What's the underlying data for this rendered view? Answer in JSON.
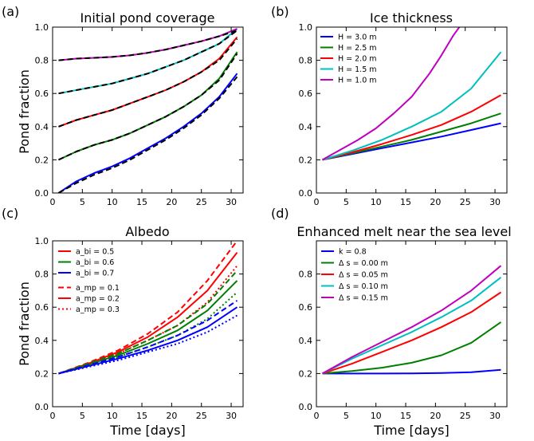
{
  "chart_data": [
    {
      "panel": "(a)",
      "type": "line",
      "title": "Initial pond coverage",
      "xlabel": "",
      "ylabel": "Pond fraction",
      "xlim": [
        0,
        32
      ],
      "ylim": [
        0,
        1.0
      ],
      "xticks": [
        0,
        5,
        10,
        15,
        20,
        25,
        30
      ],
      "yticks": [
        0.0,
        0.2,
        0.4,
        0.6,
        0.8,
        1.0
      ],
      "legend": null,
      "series": [
        {
          "color": "#0000ff",
          "style": "solid",
          "x": [
            1,
            4,
            7,
            10,
            13,
            16,
            19,
            22,
            25,
            28,
            31
          ],
          "y": [
            0.0,
            0.07,
            0.12,
            0.16,
            0.21,
            0.27,
            0.33,
            0.4,
            0.48,
            0.58,
            0.72
          ]
        },
        {
          "color": "#000000",
          "style": "dashed",
          "x": [
            1,
            4,
            7,
            10,
            13,
            16,
            19,
            22,
            25,
            28,
            31
          ],
          "y": [
            0.0,
            0.06,
            0.11,
            0.15,
            0.2,
            0.26,
            0.32,
            0.39,
            0.47,
            0.57,
            0.7
          ]
        },
        {
          "color": "#007f00",
          "style": "solid",
          "x": [
            1,
            4,
            7,
            10,
            13,
            16,
            19,
            22,
            25,
            28,
            31
          ],
          "y": [
            0.2,
            0.25,
            0.29,
            0.32,
            0.36,
            0.41,
            0.46,
            0.52,
            0.59,
            0.69,
            0.85
          ]
        },
        {
          "color": "#000000",
          "style": "dashed",
          "x": [
            1,
            4,
            7,
            10,
            13,
            16,
            19,
            22,
            25,
            28,
            31
          ],
          "y": [
            0.2,
            0.25,
            0.29,
            0.32,
            0.36,
            0.41,
            0.46,
            0.52,
            0.59,
            0.68,
            0.84
          ]
        },
        {
          "color": "#ff0000",
          "style": "solid",
          "x": [
            1,
            4,
            7,
            10,
            13,
            16,
            19,
            22,
            25,
            28,
            31
          ],
          "y": [
            0.4,
            0.44,
            0.47,
            0.5,
            0.54,
            0.58,
            0.62,
            0.67,
            0.73,
            0.81,
            0.94
          ]
        },
        {
          "color": "#000000",
          "style": "dashed",
          "x": [
            1,
            4,
            7,
            10,
            13,
            16,
            19,
            22,
            25,
            28,
            31
          ],
          "y": [
            0.4,
            0.44,
            0.47,
            0.5,
            0.54,
            0.58,
            0.62,
            0.67,
            0.73,
            0.8,
            0.93
          ]
        },
        {
          "color": "#00bfbf",
          "style": "solid",
          "x": [
            1,
            4,
            7,
            10,
            13,
            16,
            19,
            22,
            25,
            28,
            31
          ],
          "y": [
            0.6,
            0.62,
            0.64,
            0.66,
            0.69,
            0.72,
            0.76,
            0.8,
            0.85,
            0.9,
            0.99
          ]
        },
        {
          "color": "#000000",
          "style": "dashed",
          "x": [
            1,
            4,
            7,
            10,
            13,
            16,
            19,
            22,
            25,
            28,
            31
          ],
          "y": [
            0.6,
            0.62,
            0.64,
            0.66,
            0.69,
            0.72,
            0.76,
            0.8,
            0.85,
            0.9,
            0.98
          ]
        },
        {
          "color": "#bf00bf",
          "style": "solid",
          "x": [
            1,
            4,
            7,
            10,
            13,
            16,
            19,
            22,
            25,
            28,
            31
          ],
          "y": [
            0.8,
            0.81,
            0.815,
            0.82,
            0.83,
            0.845,
            0.865,
            0.89,
            0.915,
            0.945,
            0.99
          ]
        },
        {
          "color": "#000000",
          "style": "dashed",
          "x": [
            1,
            4,
            7,
            10,
            13,
            16,
            19,
            22,
            25,
            28,
            31
          ],
          "y": [
            0.8,
            0.81,
            0.815,
            0.82,
            0.83,
            0.845,
            0.865,
            0.89,
            0.915,
            0.945,
            0.98
          ]
        }
      ]
    },
    {
      "panel": "(b)",
      "type": "line",
      "title": "Ice thickness",
      "xlabel": "",
      "ylabel": "",
      "xlim": [
        0,
        32
      ],
      "ylim": [
        0,
        1.0
      ],
      "xticks": [
        0,
        5,
        10,
        15,
        20,
        25,
        30
      ],
      "yticks": [
        0.0,
        0.2,
        0.4,
        0.6,
        0.8,
        1.0
      ],
      "legend": "top-left",
      "series": [
        {
          "name": "H =  3.0 m",
          "color": "#0000ff",
          "style": "solid",
          "x": [
            1,
            6,
            11,
            16,
            21,
            26,
            31
          ],
          "y": [
            0.2,
            0.235,
            0.27,
            0.305,
            0.34,
            0.38,
            0.42
          ]
        },
        {
          "name": "H =  2.5 m",
          "color": "#007f00",
          "style": "solid",
          "x": [
            1,
            6,
            11,
            16,
            21,
            26,
            31
          ],
          "y": [
            0.2,
            0.24,
            0.28,
            0.32,
            0.37,
            0.42,
            0.48
          ]
        },
        {
          "name": "H =  2.0 m",
          "color": "#ff0000",
          "style": "solid",
          "x": [
            1,
            6,
            11,
            16,
            21,
            26,
            31
          ],
          "y": [
            0.2,
            0.245,
            0.295,
            0.35,
            0.41,
            0.49,
            0.59
          ]
        },
        {
          "name": "H =  1.5 m",
          "color": "#00bfbf",
          "style": "solid",
          "x": [
            1,
            6,
            11,
            16,
            21,
            26,
            31
          ],
          "y": [
            0.2,
            0.255,
            0.32,
            0.4,
            0.49,
            0.63,
            0.85
          ]
        },
        {
          "name": "H =  1.0 m",
          "color": "#bf00bf",
          "style": "solid",
          "x": [
            1,
            4,
            7,
            10,
            13,
            16,
            19,
            21,
            23,
            24
          ],
          "y": [
            0.2,
            0.26,
            0.32,
            0.39,
            0.48,
            0.58,
            0.72,
            0.83,
            0.95,
            1.0
          ]
        }
      ]
    },
    {
      "panel": "(c)",
      "type": "line",
      "title": "Albedo",
      "xlabel": "Time [days]",
      "ylabel": "Pond fraction",
      "xlim": [
        0,
        32
      ],
      "ylim": [
        0,
        1.0
      ],
      "xticks": [
        0,
        5,
        10,
        15,
        20,
        25,
        30
      ],
      "yticks": [
        0.0,
        0.2,
        0.4,
        0.6,
        0.8,
        1.0
      ],
      "legend": "top-left",
      "series": [
        {
          "name": "a_bi =  0.5",
          "color": "#ff0000",
          "style": "solid",
          "x": [
            1,
            6,
            11,
            16,
            21,
            26,
            31
          ],
          "y": [
            0.2,
            0.26,
            0.33,
            0.42,
            0.54,
            0.7,
            0.93
          ]
        },
        {
          "name": "a_bi =  0.6",
          "color": "#007f00",
          "style": "solid",
          "x": [
            1,
            6,
            11,
            16,
            21,
            26,
            31
          ],
          "y": [
            0.2,
            0.255,
            0.31,
            0.38,
            0.46,
            0.58,
            0.76
          ]
        },
        {
          "name": "a_bi =  0.7",
          "color": "#0000ff",
          "style": "solid",
          "x": [
            1,
            6,
            11,
            16,
            21,
            26,
            31
          ],
          "y": [
            0.2,
            0.245,
            0.29,
            0.34,
            0.4,
            0.48,
            0.6
          ]
        },
        {
          "name": "a_mp =  0.1",
          "color": "#ff0000",
          "style": "dashed",
          "x": [
            1,
            6,
            11,
            16,
            21,
            26,
            31
          ],
          "y": [
            0.2,
            0.265,
            0.34,
            0.44,
            0.57,
            0.76,
            1.0
          ]
        },
        {
          "name": "a_mp =  0.2",
          "color": "#ff0000",
          "style": "solid",
          "x": [],
          "y": []
        },
        {
          "name": "a_mp =  0.3",
          "color": "#ff0000",
          "style": "dotted",
          "x": [
            1,
            6,
            11,
            16,
            21,
            26,
            31
          ],
          "y": [
            0.2,
            0.255,
            0.32,
            0.4,
            0.49,
            0.63,
            0.85
          ]
        },
        {
          "color": "#007f00",
          "style": "dashed",
          "x": [
            1,
            6,
            11,
            16,
            21,
            26,
            31
          ],
          "y": [
            0.2,
            0.26,
            0.32,
            0.4,
            0.49,
            0.62,
            0.82
          ]
        },
        {
          "color": "#007f00",
          "style": "dotted",
          "x": [
            1,
            6,
            11,
            16,
            21,
            26,
            31
          ],
          "y": [
            0.2,
            0.25,
            0.3,
            0.36,
            0.43,
            0.53,
            0.69
          ]
        },
        {
          "color": "#0000ff",
          "style": "dashed",
          "x": [
            1,
            6,
            11,
            16,
            21,
            26,
            31
          ],
          "y": [
            0.2,
            0.25,
            0.3,
            0.36,
            0.43,
            0.52,
            0.64
          ]
        },
        {
          "color": "#0000ff",
          "style": "dotted",
          "x": [
            1,
            6,
            11,
            16,
            21,
            26,
            31
          ],
          "y": [
            0.2,
            0.24,
            0.28,
            0.33,
            0.38,
            0.45,
            0.55
          ]
        }
      ]
    },
    {
      "panel": "(d)",
      "type": "line",
      "title": "Enhanced melt near the sea level",
      "xlabel": "Time [days]",
      "ylabel": "",
      "xlim": [
        0,
        32
      ],
      "ylim": [
        0,
        1.0
      ],
      "xticks": [
        0,
        5,
        10,
        15,
        20,
        25,
        30
      ],
      "yticks": [
        0.0,
        0.2,
        0.4,
        0.6,
        0.8
      ],
      "legend": "top-left",
      "legend_header": {
        "name": "k   =  0.8",
        "color": "#0000ff"
      },
      "series": [
        {
          "color": "#0000ff",
          "style": "solid",
          "x": [
            1,
            6,
            11,
            16,
            21,
            26,
            31
          ],
          "y": [
            0.2,
            0.2,
            0.2,
            0.201,
            0.203,
            0.208,
            0.222
          ]
        },
        {
          "name": "Δ s = 0.00 m",
          "color": "#007f00",
          "style": "solid",
          "x": [
            1,
            6,
            11,
            16,
            21,
            26,
            31
          ],
          "y": [
            0.2,
            0.215,
            0.235,
            0.265,
            0.31,
            0.385,
            0.51
          ]
        },
        {
          "name": "Δ s = 0.05 m",
          "color": "#ff0000",
          "style": "solid",
          "x": [
            1,
            6,
            11,
            16,
            21,
            26,
            31
          ],
          "y": [
            0.2,
            0.26,
            0.33,
            0.4,
            0.48,
            0.57,
            0.69
          ]
        },
        {
          "name": "Δ s = 0.10 m",
          "color": "#00bfbf",
          "style": "solid",
          "x": [
            1,
            6,
            11,
            16,
            21,
            26,
            31
          ],
          "y": [
            0.2,
            0.29,
            0.37,
            0.45,
            0.54,
            0.64,
            0.78
          ]
        },
        {
          "name": "Δ s = 0.15 m",
          "color": "#bf00bf",
          "style": "solid",
          "x": [
            1,
            6,
            11,
            16,
            21,
            26,
            31
          ],
          "y": [
            0.2,
            0.3,
            0.39,
            0.48,
            0.58,
            0.7,
            0.85
          ]
        }
      ]
    }
  ]
}
